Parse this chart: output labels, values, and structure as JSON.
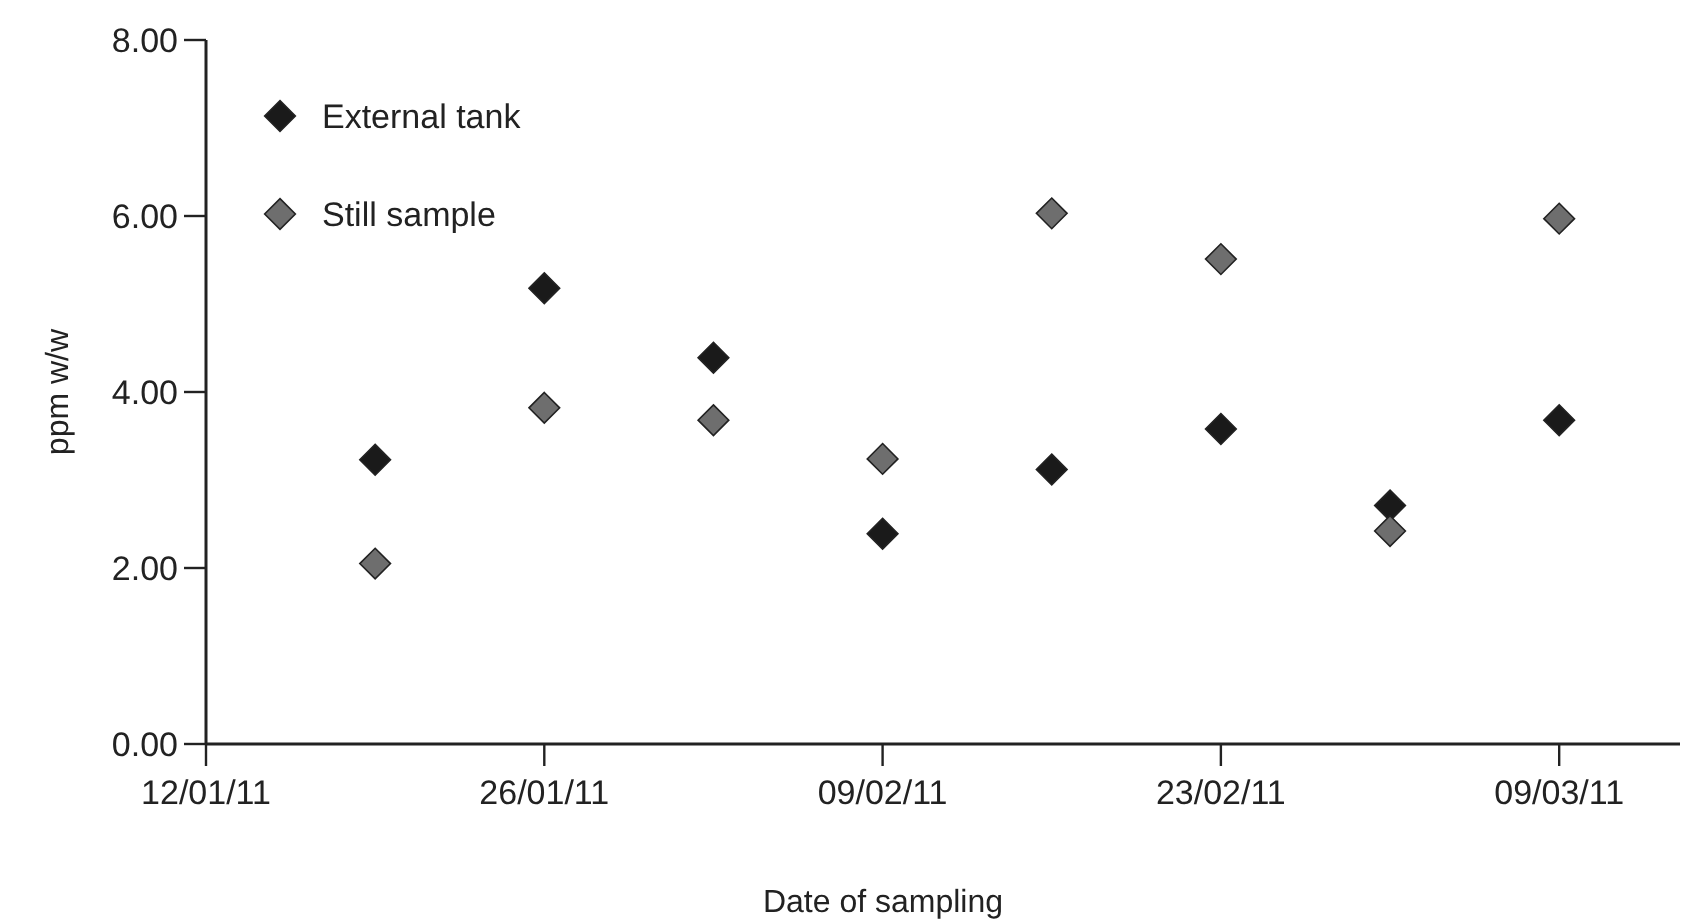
{
  "chart_data": {
    "type": "scatter",
    "xlabel": "Date of sampling",
    "ylabel": "ppm w/w",
    "x": [
      "2011-01-19",
      "2011-01-26",
      "2011-02-02",
      "2011-02-09",
      "2011-02-16",
      "2011-02-23",
      "2011-03-02",
      "2011-03-09"
    ],
    "series": [
      {
        "name": "External tank",
        "color": "#1a1a1a",
        "values": [
          3.23,
          5.18,
          4.39,
          2.39,
          3.12,
          3.58,
          2.71,
          3.68
        ]
      },
      {
        "name": "Still sample",
        "color": "#6e6e6e",
        "values": [
          2.05,
          3.82,
          3.68,
          3.24,
          6.03,
          5.51,
          2.42,
          5.97
        ]
      }
    ],
    "xlim": [
      "2011-01-12",
      "2011-03-14"
    ],
    "xticks": [
      {
        "value": "2011-01-12",
        "label": "12/01/11"
      },
      {
        "value": "2011-01-26",
        "label": "26/01/11"
      },
      {
        "value": "2011-02-09",
        "label": "09/02/11"
      },
      {
        "value": "2011-02-23",
        "label": "23/02/11"
      },
      {
        "value": "2011-03-09",
        "label": "09/03/11"
      }
    ],
    "ylim": [
      0,
      8
    ],
    "yticks": [
      {
        "value": 0,
        "label": "0.00"
      },
      {
        "value": 2,
        "label": "2.00"
      },
      {
        "value": 4,
        "label": "4.00"
      },
      {
        "value": 6,
        "label": "6.00"
      },
      {
        "value": 8,
        "label": "8.00"
      }
    ],
    "marker": "diamond",
    "legend": "top left",
    "grid": false
  }
}
